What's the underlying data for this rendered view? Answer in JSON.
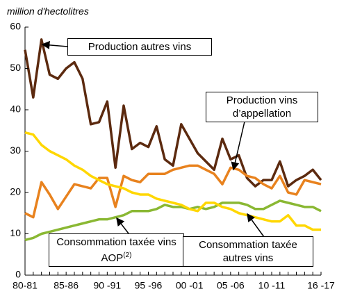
{
  "chart_data": {
    "type": "line",
    "y_axis_label": "million d'hectolitres",
    "categories": [
      "80-81",
      null,
      null,
      null,
      null,
      "85-86",
      null,
      null,
      null,
      null,
      "90 -91",
      null,
      null,
      null,
      null,
      "95 -96",
      null,
      null,
      null,
      null,
      "00 -01",
      null,
      null,
      null,
      null,
      "05 -06",
      null,
      null,
      null,
      null,
      "10 -11",
      null,
      null,
      null,
      null,
      null,
      "16 -17"
    ],
    "ylim": [
      0,
      60
    ],
    "yticks": [
      0,
      10,
      20,
      30,
      40,
      50,
      60
    ],
    "grid": false,
    "series": [
      {
        "name": "Production autres vins",
        "color": "#5c2a0f",
        "values": [
          54.5,
          43,
          57,
          48.5,
          47.5,
          50,
          51.5,
          47.5,
          36.5,
          37,
          42,
          26,
          41,
          30.5,
          32,
          31,
          36,
          28,
          26.5,
          36.5,
          33,
          29.5,
          27.5,
          25.5,
          33,
          28,
          29,
          23.5,
          21.5,
          23,
          23,
          27.5,
          21.5,
          23,
          24,
          25.5,
          23
        ]
      },
      {
        "name": "Production vins d’appellation",
        "color": "#e8821e",
        "values": [
          15,
          14,
          22.5,
          19.5,
          16,
          19,
          22,
          21.5,
          21,
          23.5,
          23.5,
          16.5,
          24,
          23,
          22.5,
          24.5,
          24.5,
          24.5,
          25.5,
          26,
          26.5,
          26.5,
          25.5,
          24.5,
          22,
          26,
          25.5,
          24,
          23.5,
          22,
          21,
          24,
          20,
          19.5,
          23,
          22.5,
          22
        ]
      },
      {
        "name": "Consommation taxée vins AOP",
        "name_note": "(2)",
        "color": "#8ab833",
        "values": [
          8.5,
          9,
          10,
          10.5,
          11,
          11.5,
          12,
          12.5,
          13,
          13.5,
          13.5,
          14,
          14.5,
          15.5,
          15.5,
          15.5,
          16,
          17,
          16.5,
          16.5,
          16,
          16.5,
          16,
          16.5,
          17.5,
          17.5,
          17.5,
          17,
          16,
          16,
          17,
          18,
          17.5,
          17,
          16.5,
          16.5,
          15.5
        ]
      },
      {
        "name": "Consommation taxée autres vins",
        "color": "#ffd700",
        "values": [
          34.5,
          34,
          31.5,
          30,
          29,
          28,
          26.5,
          25.5,
          24,
          23,
          22,
          21.5,
          21,
          20,
          19.5,
          19.5,
          18.5,
          18,
          17.5,
          17,
          16,
          15.5,
          17.5,
          17.5,
          16.5,
          16,
          15,
          14.5,
          14,
          13.5,
          13,
          13,
          14.5,
          12,
          12,
          11,
          11
        ]
      }
    ]
  }
}
